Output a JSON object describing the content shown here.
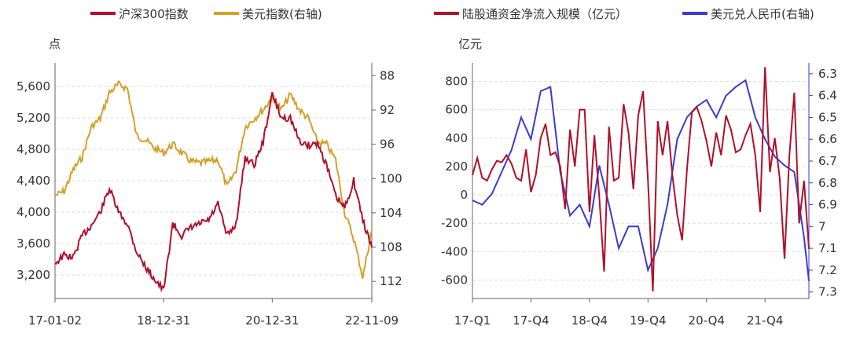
{
  "chart_data": [
    {
      "type": "line",
      "x_ticks": [
        "17-01-02",
        "18-12-31",
        "20-12-31",
        "22-11-09"
      ],
      "ylabel": "点",
      "yticks_left": [
        3200,
        3600,
        4000,
        4400,
        4800,
        5200,
        5600
      ],
      "yticks_left_labels": [
        "3,200",
        "3,600",
        "4,000",
        "4,400",
        "4,800",
        "5,200",
        "5,600"
      ],
      "yticks_right": [
        88,
        92,
        96,
        100,
        104,
        108,
        112
      ],
      "ylim_left": [
        2900,
        5900
      ],
      "ylim_right": [
        114,
        86.5
      ],
      "grid": true,
      "legend_position": "top",
      "colors": {
        "primary": "#b0102a",
        "secondary": "#d4a02a"
      },
      "series": [
        {
          "name": "沪深300指数",
          "axis": "left",
          "x": [
            "2017-01",
            "2017-03",
            "2017-05",
            "2017-07",
            "2017-09",
            "2017-11",
            "2018-01",
            "2018-03",
            "2018-05",
            "2018-07",
            "2018-09",
            "2018-11",
            "2019-01",
            "2019-03",
            "2019-05",
            "2019-07",
            "2019-09",
            "2019-11",
            "2020-01",
            "2020-03",
            "2020-05",
            "2020-07",
            "2020-09",
            "2020-11",
            "2021-01",
            "2021-03",
            "2021-05",
            "2021-07",
            "2021-09",
            "2021-11",
            "2022-01",
            "2022-03",
            "2022-05",
            "2022-07",
            "2022-09",
            "2022-11"
          ],
          "values": [
            3350,
            3450,
            3420,
            3700,
            3830,
            4000,
            4300,
            4000,
            3850,
            3500,
            3300,
            3150,
            3000,
            3850,
            3700,
            3800,
            3850,
            3900,
            4100,
            3700,
            3850,
            4700,
            4600,
            4900,
            5500,
            5200,
            5200,
            4900,
            4850,
            4880,
            4600,
            4200,
            4050,
            4400,
            3900,
            3550
          ]
        },
        {
          "name": "美元指数(右轴)",
          "axis": "right",
          "x": [
            "2017-01",
            "2017-03",
            "2017-05",
            "2017-07",
            "2017-09",
            "2017-11",
            "2018-01",
            "2018-03",
            "2018-05",
            "2018-07",
            "2018-09",
            "2018-11",
            "2019-01",
            "2019-03",
            "2019-05",
            "2019-07",
            "2019-09",
            "2019-11",
            "2020-01",
            "2020-03",
            "2020-05",
            "2020-07",
            "2020-09",
            "2020-11",
            "2021-01",
            "2021-03",
            "2021-05",
            "2021-07",
            "2021-09",
            "2021-11",
            "2022-01",
            "2022-03",
            "2022-05",
            "2022-07",
            "2022-09",
            "2022-11"
          ],
          "values": [
            102,
            101.5,
            99,
            97.5,
            94,
            93,
            90,
            89,
            89.5,
            95,
            95.5,
            96.5,
            97,
            96,
            97,
            98,
            98.2,
            98,
            97.8,
            101,
            99,
            94,
            93,
            92,
            90.5,
            92,
            90.2,
            92,
            93,
            95.8,
            96,
            97.8,
            104,
            107,
            111.5,
            106
          ]
        }
      ]
    },
    {
      "type": "line",
      "x_ticks": [
        "17-Q1",
        "17-Q4",
        "18-Q4",
        "19-Q4",
        "20-Q4",
        "21-Q4"
      ],
      "ylabel": "亿元",
      "yticks_left": [
        -600,
        -400,
        -200,
        0,
        200,
        400,
        600,
        800
      ],
      "yticks_left_labels": [
        "-600",
        "-400",
        "-200",
        "0",
        "200",
        "400",
        "600",
        "800"
      ],
      "yticks_right": [
        6.3,
        6.4,
        6.5,
        6.6,
        6.7,
        6.8,
        6.9,
        7,
        7.1,
        7.2,
        7.3
      ],
      "yticks_right_labels": [
        "6.3",
        "6.4",
        "6.5",
        "6.6",
        "6.7",
        "6.8",
        "6.9",
        "7",
        "7.1",
        "7.2",
        "7.3"
      ],
      "ylim_left": [
        -730,
        930
      ],
      "ylim_right": [
        7.33,
        6.25
      ],
      "grid": true,
      "legend_position": "top",
      "colors": {
        "primary": "#b0102a",
        "secondary": "#3b3bd0"
      },
      "series": [
        {
          "name": "陆股通资金净流入规模（亿元）",
          "axis": "left",
          "x": [
            0,
            1,
            2,
            3,
            4,
            5,
            6,
            7,
            8,
            9,
            10,
            11,
            12,
            13,
            14,
            15,
            16,
            17,
            18,
            19,
            20,
            21,
            22,
            23,
            24,
            25,
            26,
            27,
            28,
            29,
            30,
            31,
            32,
            33,
            34,
            35,
            36,
            37,
            38,
            39,
            40,
            41,
            42,
            43,
            44,
            45,
            46,
            47,
            48,
            49,
            50,
            51,
            52,
            53,
            54,
            55,
            56,
            57,
            58,
            59,
            60,
            61,
            62,
            63,
            64,
            65,
            66,
            67,
            68,
            69
          ],
          "values": [
            140,
            260,
            120,
            100,
            180,
            240,
            230,
            280,
            220,
            120,
            100,
            320,
            20,
            140,
            400,
            500,
            280,
            300,
            200,
            -100,
            460,
            200,
            600,
            600,
            -120,
            420,
            -10,
            -540,
            480,
            100,
            120,
            640,
            440,
            40,
            560,
            730,
            100,
            -680,
            520,
            280,
            520,
            140,
            -140,
            -320,
            180,
            580,
            620,
            520,
            380,
            200,
            440,
            280,
            560,
            460,
            300,
            320,
            420,
            500,
            280,
            -120,
            900,
            160,
            400,
            120,
            -450,
            280,
            720,
            -200,
            100,
            -380
          ],
          "x_quarter_start": "2017-Q1"
        },
        {
          "name": "美元兑人民币(右轴)",
          "axis": "right",
          "x": [
            0,
            2,
            4,
            6,
            8,
            10,
            12,
            14,
            16,
            18,
            20,
            22,
            24,
            26,
            28,
            30,
            32,
            34,
            36,
            38,
            40,
            42,
            44,
            46,
            48,
            50,
            52,
            54,
            56,
            58,
            60,
            62,
            64,
            66,
            68,
            69
          ],
          "values": [
            6.88,
            6.9,
            6.85,
            6.75,
            6.65,
            6.5,
            6.6,
            6.38,
            6.36,
            6.75,
            6.95,
            6.9,
            7.0,
            6.72,
            6.9,
            7.1,
            7.0,
            7.0,
            7.2,
            7.1,
            6.9,
            6.6,
            6.5,
            6.45,
            6.42,
            6.5,
            6.4,
            6.36,
            6.33,
            6.5,
            6.6,
            6.68,
            6.72,
            6.75,
            7.05,
            7.25
          ]
        }
      ]
    }
  ]
}
